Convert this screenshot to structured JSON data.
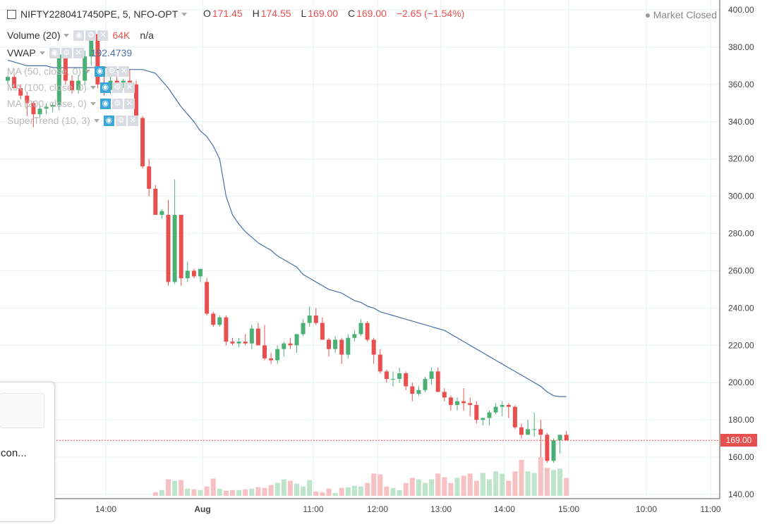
{
  "symbol": {
    "name": "NIFTY2280417450PE, 5, NFO-OPT",
    "open_label": "O",
    "open": "171.45",
    "high_label": "H",
    "high": "174.55",
    "low_label": "L",
    "low": "169.00",
    "close_label": "C",
    "close": "169.00",
    "change": "−2.65 (−1.54%)"
  },
  "market_status": "Market Closed",
  "indicators": [
    {
      "name": "Volume (20)",
      "value": "64K",
      "extra": "n/a"
    },
    {
      "name": "VWAP",
      "value": "192.4739"
    },
    {
      "name": "MA (50, close, 0)"
    },
    {
      "name": "MA (100, close, 0)"
    },
    {
      "name": "MA (200, close, 0)"
    },
    {
      "name": "SuperTrend (10, 3)"
    }
  ],
  "popup_text": "con...",
  "last_price_label": "169.00",
  "colors": {
    "up": "#4caf75",
    "down": "#e8504f",
    "vwap": "#4a6fa5",
    "grid": "#e6f0f3",
    "vol_up": "#bfe4cc",
    "vol_down": "#f7c1c3"
  },
  "chart_data": {
    "type": "candlestick",
    "title": "NIFTY2280417450PE, 5, NFO-OPT",
    "ylim": [
      140,
      400
    ],
    "y_ticks": [
      "400.00",
      "380.00",
      "360.00",
      "340.00",
      "320.00",
      "300.00",
      "280.00",
      "260.00",
      "240.00",
      "220.00",
      "200.00",
      "180.00",
      "160.00",
      "140.00"
    ],
    "x_ticks": [
      "14:00",
      "Aug",
      "11:00",
      "12:00",
      "13:00",
      "14:00",
      "15:00",
      "10:00",
      "11:00"
    ],
    "candles": [
      [
        362,
        365,
        360,
        364
      ],
      [
        364,
        366,
        358,
        358
      ],
      [
        358,
        360,
        352,
        354
      ],
      [
        354,
        356,
        343,
        350
      ],
      [
        350,
        351,
        337,
        344
      ],
      [
        344,
        349,
        342,
        347
      ],
      [
        347,
        350,
        344,
        348
      ],
      [
        348,
        350,
        345,
        349
      ],
      [
        349,
        379,
        346,
        376
      ],
      [
        376,
        379,
        360,
        362
      ],
      [
        362,
        365,
        355,
        357
      ],
      [
        357,
        365,
        355,
        362
      ],
      [
        362,
        378,
        360,
        375
      ],
      [
        375,
        389,
        370,
        387
      ],
      [
        387,
        388,
        358,
        360
      ],
      [
        360,
        365,
        354,
        357
      ],
      [
        357,
        365,
        355,
        362
      ],
      [
        362,
        366,
        360,
        361
      ],
      [
        361,
        363,
        358,
        362
      ],
      [
        362,
        368,
        358,
        360
      ],
      [
        360,
        362,
        340,
        342
      ],
      [
        342,
        343,
        315,
        316
      ],
      [
        316,
        320,
        300,
        304
      ],
      [
        304,
        306,
        290,
        290
      ],
      [
        290,
        293,
        288,
        292
      ],
      [
        290,
        298,
        252,
        254
      ],
      [
        254,
        309,
        253,
        290
      ],
      [
        290,
        290,
        252,
        256
      ],
      [
        256,
        265,
        254,
        260
      ],
      [
        260,
        261,
        256,
        257
      ],
      [
        257,
        259,
        254,
        261
      ],
      [
        254,
        256,
        236,
        237
      ],
      [
        237,
        238,
        230,
        231
      ],
      [
        231,
        236,
        230,
        235
      ],
      [
        235,
        236,
        220,
        222
      ],
      [
        222,
        224,
        220,
        221
      ],
      [
        221,
        224,
        219,
        222
      ],
      [
        222,
        226,
        220,
        221
      ],
      [
        221,
        231,
        218,
        229
      ],
      [
        229,
        232,
        220,
        220
      ],
      [
        220,
        231,
        212,
        213
      ],
      [
        213,
        216,
        210,
        212
      ],
      [
        212,
        220,
        210,
        218
      ],
      [
        218,
        222,
        214,
        221
      ],
      [
        221,
        224,
        218,
        220
      ],
      [
        220,
        226,
        216,
        226
      ],
      [
        226,
        234,
        225,
        232
      ],
      [
        232,
        241,
        230,
        236
      ],
      [
        236,
        240,
        231,
        232
      ],
      [
        232,
        235,
        223,
        223
      ],
      [
        223,
        224,
        214,
        218
      ],
      [
        218,
        225,
        216,
        223
      ],
      [
        223,
        224,
        210,
        215
      ],
      [
        215,
        226,
        213,
        224
      ],
      [
        224,
        228,
        222,
        226
      ],
      [
        226,
        234,
        225,
        232
      ],
      [
        232,
        233,
        222,
        223
      ],
      [
        223,
        224,
        210,
        215
      ],
      [
        215,
        218,
        205,
        206
      ],
      [
        206,
        207,
        200,
        202
      ],
      [
        202,
        206,
        198,
        202
      ],
      [
        202,
        208,
        200,
        205
      ],
      [
        205,
        206,
        196,
        198
      ],
      [
        198,
        200,
        190,
        194
      ],
      [
        194,
        198,
        193,
        196
      ],
      [
        196,
        203,
        195,
        202
      ],
      [
        202,
        208,
        199,
        206
      ],
      [
        206,
        208,
        195,
        195
      ],
      [
        195,
        197,
        190,
        192
      ],
      [
        192,
        193,
        185,
        188
      ],
      [
        188,
        192,
        185,
        190
      ],
      [
        190,
        197,
        185,
        189
      ],
      [
        189,
        192,
        182,
        188
      ],
      [
        188,
        190,
        178,
        180
      ],
      [
        180,
        181,
        177,
        181
      ],
      [
        181,
        185,
        177,
        184
      ],
      [
        184,
        189,
        183,
        187
      ],
      [
        187,
        190,
        182,
        188
      ],
      [
        188,
        189,
        181,
        187
      ],
      [
        187,
        188,
        175,
        176
      ],
      [
        176,
        178,
        170,
        172
      ],
      [
        172,
        180,
        172,
        175
      ],
      [
        175,
        184,
        171,
        175
      ],
      [
        175,
        180,
        160,
        172
      ],
      [
        172,
        173,
        157,
        158
      ],
      [
        158,
        170,
        157,
        169
      ],
      [
        169,
        172,
        162,
        172
      ],
      [
        172,
        174,
        169,
        169
      ]
    ],
    "volume": [
      0,
      0,
      0,
      0,
      0,
      0,
      0,
      0,
      0,
      0,
      0,
      0,
      0,
      0,
      0,
      0,
      0,
      0,
      0,
      0,
      0,
      0,
      0,
      0.5,
      0.8,
      2.3,
      2.1,
      2.2,
      1,
      0.9,
      0.8,
      1.3,
      2.4,
      1,
      0.7,
      0.8,
      0.8,
      0.9,
      1,
      1.2,
      1.1,
      1.5,
      1.8,
      2.3,
      2.1,
      1.7,
      1.3,
      2.2,
      0.6,
      0.5,
      1,
      0.4,
      1.1,
      1.2,
      1.4,
      1.3,
      1.8,
      3.1,
      3,
      1.3,
      1.1,
      0.8,
      1.8,
      2.5,
      2.3,
      1.8,
      2.3,
      3.1,
      2.6,
      1.8,
      2.5,
      2.8,
      3.1,
      2.1,
      3.2,
      2.3,
      3.4,
      3.1,
      2.1,
      3.4,
      5,
      3.4,
      3.2,
      5.4,
      3.9,
      3.6,
      3.8,
      2.5
    ],
    "vwap": [
      373,
      372,
      371,
      370,
      370,
      370,
      370,
      369,
      369,
      369,
      369,
      369,
      369,
      369,
      369,
      369,
      369,
      368,
      368,
      368,
      368,
      368,
      367,
      366,
      362,
      358,
      353,
      348,
      344,
      340,
      335,
      332,
      327,
      320,
      300,
      290,
      285,
      281,
      278,
      275,
      273,
      271,
      268,
      266,
      264,
      262,
      258,
      256,
      254,
      252,
      250,
      249,
      248,
      246,
      244,
      243,
      241,
      240,
      238,
      237,
      236,
      235,
      234,
      233,
      232,
      231,
      230,
      229,
      228,
      226,
      224,
      222,
      220,
      218,
      216,
      214,
      212,
      210,
      208,
      206,
      204,
      202,
      200,
      198,
      195,
      193,
      192.5,
      192.4739
    ]
  }
}
